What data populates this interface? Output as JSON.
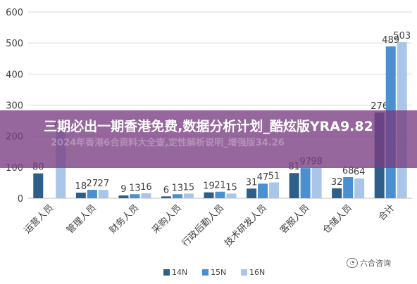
{
  "chart_data": {
    "type": "bar",
    "categories": [
      "运营人员",
      "管理人员",
      "财务人员",
      "采购人员",
      "行政后勤人员",
      "技术研发人员",
      "客服人员",
      "仓储人员",
      "合计"
    ],
    "series": [
      {
        "name": "14N",
        "values": [
          80,
          18,
          9,
          6,
          19,
          31,
          81,
          32,
          276
        ]
      },
      {
        "name": "15N",
        "values": [
          null,
          27,
          13,
          13,
          21,
          47,
          97,
          68,
          489
        ]
      },
      {
        "name": "16N",
        "values": [
          217,
          27,
          16,
          15,
          15,
          51,
          98,
          64,
          503
        ]
      }
    ],
    "data_labels": [
      [
        "80",
        "",
        "217"
      ],
      [
        "18",
        "27",
        "27"
      ],
      [
        "9",
        "13",
        "16"
      ],
      [
        "6",
        "13",
        "15"
      ],
      [
        "19",
        "21",
        "15"
      ],
      [
        "31",
        "47",
        "51"
      ],
      [
        "81",
        "97",
        "98"
      ],
      [
        "32",
        "68",
        "64"
      ],
      [
        "276",
        "489",
        "503"
      ]
    ],
    "yticks": [
      0,
      100,
      200,
      300,
      400,
      500,
      600
    ],
    "ylim": [
      0,
      600
    ],
    "grid": true,
    "legend_position": "bottom",
    "colors": [
      "#2e5f8a",
      "#4a8fd0",
      "#a9c6e8"
    ]
  },
  "overlay": {
    "title": "三期必出一期香港免费,数据分析计划_酷炫版YRA9.82",
    "ghost_text": "2024年香港6合资料大全查,定性解析说明_增强版34.26"
  },
  "watermark": {
    "text": "六合咨询",
    "icon": "wechat-icon"
  }
}
